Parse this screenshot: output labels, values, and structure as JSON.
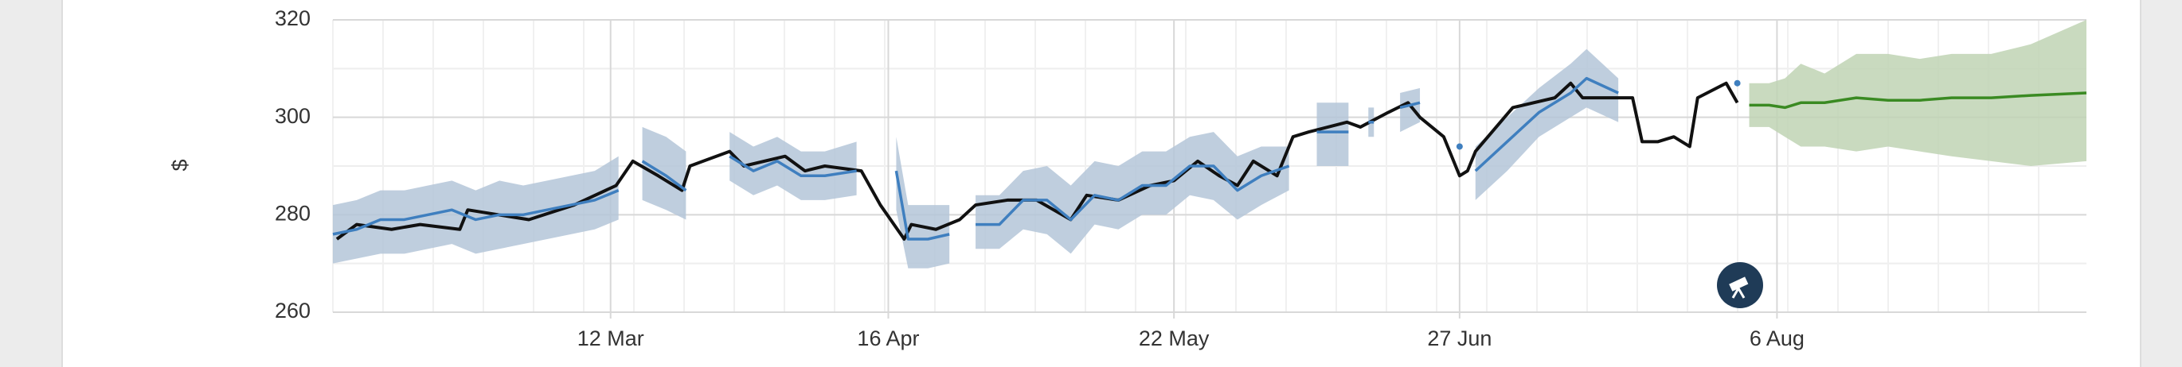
{
  "chart_data": {
    "type": "line",
    "y_label": "$",
    "xlim": [
      36,
      257
    ],
    "ylim": [
      260,
      320
    ],
    "yticks": [
      260,
      280,
      300,
      320
    ],
    "xticks": [
      {
        "value": 71,
        "label": "12 Mar"
      },
      {
        "value": 106,
        "label": "16 Apr"
      },
      {
        "value": 142,
        "label": "22 May"
      },
      {
        "value": 178,
        "label": "27 Jun"
      },
      {
        "value": 218,
        "label": "6 Aug"
      }
    ],
    "grid": true,
    "series": [
      {
        "color": "#111111",
        "x": [
          36.5,
          39,
          43.4,
          47,
          52,
          53,
          60.7,
          66.4,
          71.7,
          73.8,
          77,
          80,
          81,
          86,
          87.8,
          93,
          95.5,
          98,
          102.6,
          105,
          108,
          108.9,
          112,
          115,
          117,
          121,
          124.7,
          129,
          131,
          135,
          139,
          142,
          145,
          147.7,
          150,
          152,
          155,
          157,
          159,
          163.8,
          165.5,
          169,
          171.5,
          173,
          176,
          178,
          179,
          180,
          184.7,
          190,
          192,
          193.5,
          198,
          199.8,
          201,
          203,
          205,
          207,
          208,
          211.6,
          213
        ],
        "values": [
          275,
          278,
          277,
          278,
          277,
          281,
          279,
          282,
          286,
          291,
          288,
          285,
          290,
          293,
          290,
          292,
          289,
          290,
          289,
          282,
          275,
          278,
          277,
          279,
          282,
          283,
          283,
          279,
          284,
          283,
          286,
          287,
          291,
          288,
          286,
          291,
          288,
          296,
          297,
          299,
          298,
          301,
          303,
          300,
          296,
          288,
          289,
          293,
          302,
          304,
          307,
          304,
          304,
          304,
          295,
          295,
          296,
          294,
          304,
          307,
          303
        ]
      },
      {
        "color": "#3f7fbf",
        "band_color": "#b4c6d8",
        "x": [
          36,
          39,
          42,
          45,
          48,
          51,
          54,
          57,
          60,
          63,
          66,
          69,
          72,
          null,
          75,
          78,
          80.5,
          null,
          86,
          89,
          92,
          95,
          98,
          102,
          null,
          107,
          108.5,
          111,
          113.7,
          null,
          117,
          120,
          123,
          126,
          129,
          132,
          135,
          138,
          141,
          144,
          147,
          150,
          153,
          156.5,
          null,
          160,
          164,
          null,
          166.5,
          167.2,
          null,
          170.5,
          173,
          null,
          178,
          null,
          180,
          184,
          188,
          192,
          194,
          198,
          null,
          213
        ],
        "values": [
          276,
          277,
          279,
          279,
          280,
          281,
          279,
          280,
          280,
          281,
          282,
          283,
          285,
          null,
          291,
          288,
          285,
          null,
          292,
          289,
          291,
          288,
          288,
          289,
          null,
          289,
          275,
          275,
          276,
          null,
          278,
          278,
          283,
          283,
          279,
          284,
          283,
          286,
          286,
          290,
          290,
          285,
          288,
          290,
          null,
          297,
          297,
          null,
          299,
          299,
          null,
          302,
          303,
          null,
          294,
          null,
          289,
          295,
          301,
          305,
          308,
          305,
          null,
          307
        ],
        "lower": [
          270,
          271,
          272,
          272,
          273,
          274,
          272,
          273,
          274,
          275,
          276,
          277,
          279,
          null,
          283,
          281,
          279,
          null,
          287,
          284,
          286,
          283,
          283,
          284,
          null,
          281,
          269,
          269,
          270,
          null,
          273,
          273,
          277,
          276,
          272,
          278,
          277,
          280,
          280,
          284,
          283,
          279,
          282,
          285,
          null,
          290,
          290,
          null,
          296,
          296,
          null,
          297,
          299,
          null,
          null,
          null,
          283,
          289,
          296,
          300,
          302,
          299,
          null,
          null
        ],
        "upper": [
          282,
          283,
          285,
          285,
          286,
          287,
          285,
          287,
          286,
          287,
          288,
          289,
          292,
          null,
          298,
          296,
          293,
          null,
          297,
          294,
          296,
          293,
          293,
          295,
          null,
          296,
          282,
          282,
          282,
          null,
          284,
          284,
          289,
          290,
          286,
          291,
          290,
          293,
          293,
          296,
          297,
          292,
          294,
          294,
          null,
          303,
          303,
          null,
          302,
          302,
          null,
          305,
          306,
          null,
          null,
          null,
          294,
          300,
          306,
          311,
          314,
          308,
          null,
          null
        ]
      },
      {
        "color": "#3a8a22",
        "band_color": "#bfd4b4",
        "x": [
          214.5,
          217,
          219,
          221,
          224,
          228,
          232,
          236,
          240,
          245,
          250,
          257
        ],
        "values": [
          302.5,
          302.5,
          302,
          303,
          303,
          304,
          303.5,
          303.5,
          304,
          304,
          304.5,
          305
        ],
        "lower": [
          298,
          298,
          296,
          294,
          294,
          293,
          294,
          293,
          292,
          291,
          290,
          291
        ],
        "upper": [
          307,
          307,
          308,
          311,
          309,
          313,
          313,
          312,
          313,
          313,
          315,
          320
        ]
      }
    ]
  }
}
